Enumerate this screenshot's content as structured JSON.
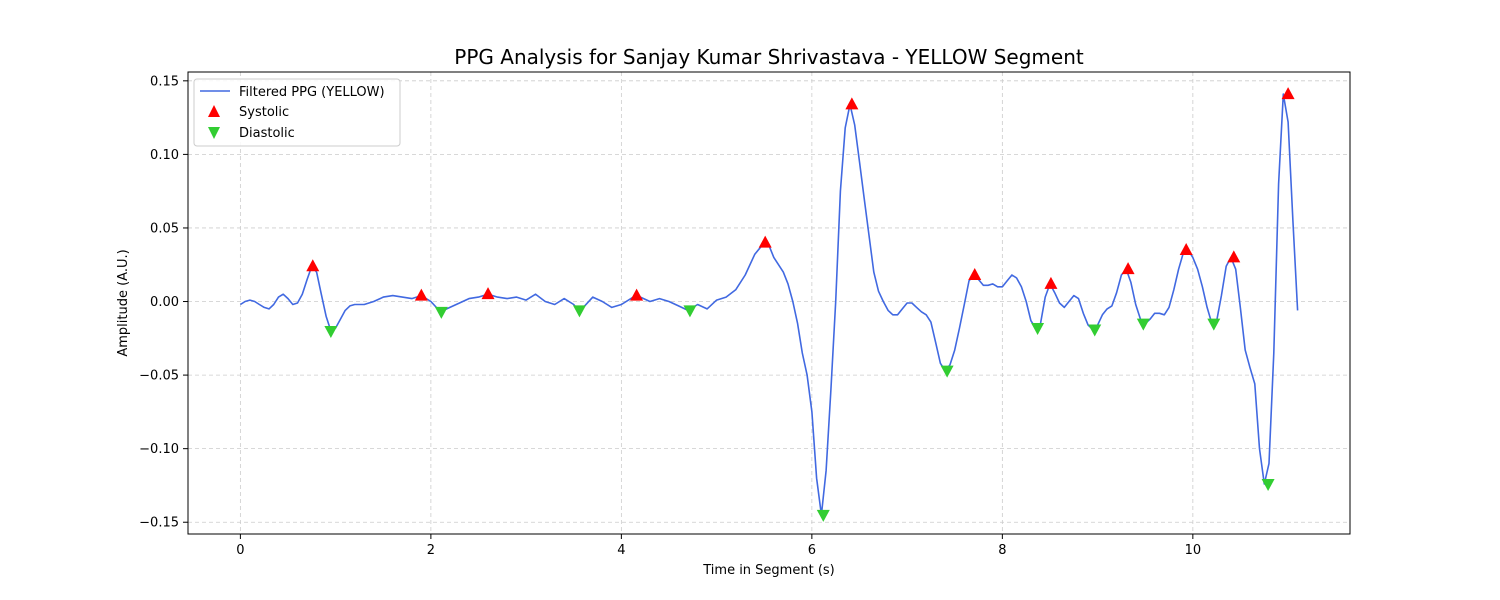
{
  "chart_data": {
    "type": "line",
    "title": "PPG Analysis for Sanjay Kumar Shrivastava - YELLOW Segment",
    "xlabel": "Time in Segment (s)",
    "ylabel": "Amplitude (A.U.)",
    "xlim": [
      -0.55,
      11.65
    ],
    "ylim": [
      -0.158,
      0.156
    ],
    "xticks": [
      0,
      2,
      4,
      6,
      8,
      10
    ],
    "yticks": [
      -0.15,
      -0.1,
      -0.05,
      0.0,
      0.05,
      0.1,
      0.15
    ],
    "ytick_labels": [
      "−0.15",
      "−0.10",
      "−0.05",
      "0.00",
      "0.05",
      "0.10",
      "0.15"
    ],
    "grid": true,
    "legend_position": "upper-left",
    "series": [
      {
        "name": "Filtered PPG (YELLOW)",
        "kind": "line",
        "color": "#4169e1",
        "x": [
          0,
          0.05,
          0.1,
          0.15,
          0.2,
          0.25,
          0.3,
          0.35,
          0.4,
          0.45,
          0.5,
          0.55,
          0.6,
          0.65,
          0.7,
          0.75,
          0.8,
          0.85,
          0.9,
          0.95,
          1.0,
          1.05,
          1.1,
          1.15,
          1.2,
          1.3,
          1.4,
          1.5,
          1.6,
          1.7,
          1.8,
          1.9,
          2.0,
          2.1,
          2.2,
          2.3,
          2.4,
          2.5,
          2.6,
          2.7,
          2.8,
          2.9,
          3.0,
          3.1,
          3.2,
          3.3,
          3.4,
          3.5,
          3.55,
          3.6,
          3.7,
          3.8,
          3.9,
          4.0,
          4.1,
          4.15,
          4.2,
          4.3,
          4.4,
          4.5,
          4.6,
          4.7,
          4.8,
          4.9,
          5.0,
          5.1,
          5.2,
          5.3,
          5.4,
          5.5,
          5.55,
          5.6,
          5.7,
          5.75,
          5.8,
          5.85,
          5.9,
          5.95,
          6.0,
          6.05,
          6.1,
          6.15,
          6.2,
          6.25,
          6.3,
          6.35,
          6.4,
          6.45,
          6.5,
          6.55,
          6.6,
          6.65,
          6.7,
          6.75,
          6.8,
          6.85,
          6.9,
          6.95,
          7.0,
          7.05,
          7.1,
          7.15,
          7.2,
          7.25,
          7.3,
          7.35,
          7.4,
          7.45,
          7.5,
          7.55,
          7.6,
          7.65,
          7.7,
          7.75,
          7.8,
          7.85,
          7.9,
          7.95,
          8.0,
          8.05,
          8.1,
          8.15,
          8.2,
          8.25,
          8.3,
          8.35,
          8.4,
          8.45,
          8.5,
          8.55,
          8.6,
          8.65,
          8.7,
          8.75,
          8.8,
          8.85,
          8.9,
          8.95,
          9.0,
          9.05,
          9.1,
          9.15,
          9.2,
          9.25,
          9.3,
          9.35,
          9.4,
          9.45,
          9.5,
          9.55,
          9.6,
          9.65,
          9.7,
          9.75,
          9.8,
          9.85,
          9.9,
          9.95,
          10.0,
          10.05,
          10.1,
          10.15,
          10.2,
          10.25,
          10.3,
          10.35,
          10.4,
          10.45,
          10.5,
          10.55,
          10.6,
          10.65,
          10.7,
          10.75,
          10.8,
          10.85,
          10.9,
          10.95,
          11.0,
          11.05,
          11.1
        ],
        "y": [
          -0.002,
          0.0,
          0.001,
          0.0,
          -0.002,
          -0.004,
          -0.005,
          -0.002,
          0.003,
          0.005,
          0.002,
          -0.002,
          -0.001,
          0.005,
          0.015,
          0.024,
          0.02,
          0.005,
          -0.01,
          -0.02,
          -0.018,
          -0.012,
          -0.006,
          -0.003,
          -0.002,
          -0.002,
          0.0,
          0.003,
          0.004,
          0.003,
          0.002,
          0.004,
          0.0,
          -0.007,
          -0.004,
          -0.001,
          0.002,
          0.003,
          0.005,
          0.003,
          0.002,
          0.003,
          0.001,
          0.005,
          0.0,
          -0.002,
          0.002,
          -0.002,
          -0.006,
          -0.004,
          0.003,
          0.0,
          -0.004,
          -0.002,
          0.002,
          0.004,
          0.003,
          0.0,
          0.002,
          0.0,
          -0.003,
          -0.006,
          -0.002,
          -0.005,
          0.001,
          0.003,
          0.008,
          0.018,
          0.032,
          0.04,
          0.038,
          0.03,
          0.02,
          0.012,
          0.0,
          -0.015,
          -0.035,
          -0.05,
          -0.075,
          -0.12,
          -0.145,
          -0.115,
          -0.06,
          0.0,
          0.075,
          0.118,
          0.134,
          0.12,
          0.095,
          0.07,
          0.045,
          0.02,
          0.007,
          0.0,
          -0.006,
          -0.009,
          -0.009,
          -0.005,
          -0.001,
          -0.001,
          -0.004,
          -0.007,
          -0.009,
          -0.014,
          -0.028,
          -0.042,
          -0.047,
          -0.043,
          -0.033,
          -0.018,
          -0.002,
          0.014,
          0.018,
          0.015,
          0.011,
          0.011,
          0.012,
          0.01,
          0.01,
          0.014,
          0.018,
          0.016,
          0.01,
          0.0,
          -0.013,
          -0.018,
          -0.015,
          0.003,
          0.012,
          0.006,
          -0.001,
          -0.004,
          0.0,
          0.004,
          0.002,
          -0.008,
          -0.016,
          -0.019,
          -0.016,
          -0.009,
          -0.005,
          -0.003,
          0.006,
          0.018,
          0.022,
          0.013,
          -0.002,
          -0.012,
          -0.015,
          -0.012,
          -0.008,
          -0.008,
          -0.009,
          -0.004,
          0.008,
          0.022,
          0.033,
          0.035,
          0.03,
          0.022,
          0.01,
          -0.004,
          -0.015,
          -0.013,
          0.004,
          0.024,
          0.03,
          0.022,
          -0.005,
          -0.033,
          -0.045,
          -0.056,
          -0.1,
          -0.124,
          -0.11,
          -0.035,
          0.08,
          0.141,
          0.122,
          0.055,
          -0.006
        ]
      },
      {
        "name": "Systolic",
        "kind": "marker",
        "marker": "triangle-up",
        "color": "#ff0000",
        "x": [
          0.76,
          1.9,
          2.6,
          4.16,
          5.51,
          6.42,
          7.71,
          8.51,
          9.32,
          9.93,
          10.43,
          11.0
        ],
        "y": [
          0.024,
          0.004,
          0.005,
          0.004,
          0.04,
          0.134,
          0.018,
          0.012,
          0.022,
          0.035,
          0.03,
          0.141
        ]
      },
      {
        "name": "Diastolic",
        "kind": "marker",
        "marker": "triangle-down",
        "color": "#32cd32",
        "x": [
          0.95,
          2.11,
          3.56,
          4.72,
          6.12,
          7.42,
          8.37,
          8.97,
          9.48,
          10.22,
          10.79
        ],
        "y": [
          -0.02,
          -0.007,
          -0.006,
          -0.006,
          -0.145,
          -0.047,
          -0.018,
          -0.019,
          -0.015,
          -0.015,
          -0.124
        ]
      }
    ]
  }
}
